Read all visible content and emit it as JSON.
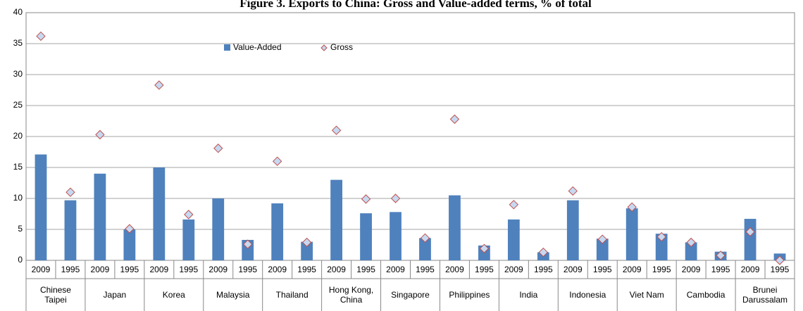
{
  "chart_data": {
    "type": "bar",
    "title": "Figure 3. Exports to China: Gross and Value-added terms, % of total",
    "categories": [
      "2009",
      "1995",
      "2009",
      "1995",
      "2009",
      "1995",
      "2009",
      "1995",
      "2009",
      "1995",
      "2009",
      "1995",
      "2009",
      "1995",
      "2009",
      "1995",
      "2009",
      "1995",
      "2009",
      "1995",
      "2009",
      "1995",
      "2009",
      "1995",
      "2009",
      "1995"
    ],
    "groups": [
      "Chinese Taipei",
      "Japan",
      "Korea",
      "Malaysia",
      "Thailand",
      "Hong Kong, China",
      "Singapore",
      "Philippines",
      "India",
      "Indonesia",
      "Viet Nam",
      "Cambodia",
      "Brunei Darussalam"
    ],
    "series": [
      {
        "name": "Value-Added",
        "type": "bar",
        "color": "#4f81bd",
        "values": [
          17.1,
          9.7,
          14.0,
          5.0,
          15.0,
          6.6,
          10.0,
          3.3,
          9.2,
          3.0,
          13.0,
          7.6,
          7.8,
          3.6,
          10.5,
          2.4,
          6.6,
          1.3,
          9.7,
          3.5,
          8.4,
          4.3,
          2.9,
          1.4,
          6.7,
          1.1
        ]
      },
      {
        "name": "Gross",
        "type": "scatter",
        "color": "#c6d9f1",
        "edge_color": "#c0504d",
        "values": [
          36.2,
          11.0,
          20.3,
          5.1,
          28.3,
          7.4,
          18.1,
          2.6,
          16.0,
          2.9,
          21.0,
          9.9,
          10.0,
          3.6,
          22.8,
          1.9,
          9.0,
          1.3,
          11.2,
          3.4,
          8.6,
          3.8,
          2.9,
          0.8,
          4.6,
          0.0
        ]
      }
    ],
    "ylim": [
      0,
      40
    ],
    "yticks": [
      0,
      5,
      10,
      15,
      20,
      25,
      30,
      35,
      40
    ],
    "grid": true
  }
}
